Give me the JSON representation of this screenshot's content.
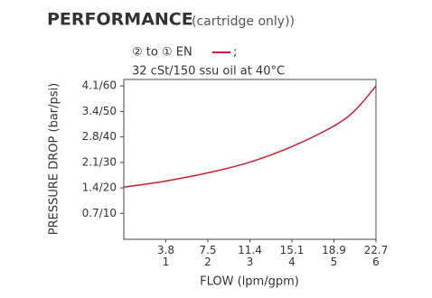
{
  "chart_data": {
    "type": "line",
    "title": "PERFORMANCE",
    "subtitle": "(cartridge only))",
    "legend_label": "② to ① EN",
    "legend_suffix": ";",
    "annotation": "32 cSt/150 ssu oil at 40°C",
    "ylabel": "PRESSURE DROP (bar/psi)",
    "xlabel": "FLOW (lpm/gpm)",
    "x": [
      0,
      1,
      2,
      3,
      4,
      5,
      5.5,
      6
    ],
    "series": [
      {
        "name": "② to ① EN",
        "color": "#c8202f",
        "values": [
          20.3,
          22.7,
          25.9,
          30.1,
          36.2,
          44.3,
          50.4,
          60
        ]
      }
    ],
    "xlim": [
      0,
      6
    ],
    "ylim": [
      0,
      60
    ],
    "xticks": [
      {
        "value": 1,
        "label": "3.8\n1"
      },
      {
        "value": 2,
        "label": "7.5\n2"
      },
      {
        "value": 3,
        "label": "11.4\n3"
      },
      {
        "value": 4,
        "label": "15.1\n4"
      },
      {
        "value": 5,
        "label": "18.9\n5"
      },
      {
        "value": 6,
        "label": "22.7\n6"
      }
    ],
    "yticks": [
      {
        "value": 10,
        "label": "0.7/10"
      },
      {
        "value": 20,
        "label": "1.4/20"
      },
      {
        "value": 30,
        "label": "2.1/30"
      },
      {
        "value": 40,
        "label": "2.8/40"
      },
      {
        "value": 50,
        "label": "3.4/50"
      },
      {
        "value": 60,
        "label": "4.1/60"
      }
    ]
  }
}
